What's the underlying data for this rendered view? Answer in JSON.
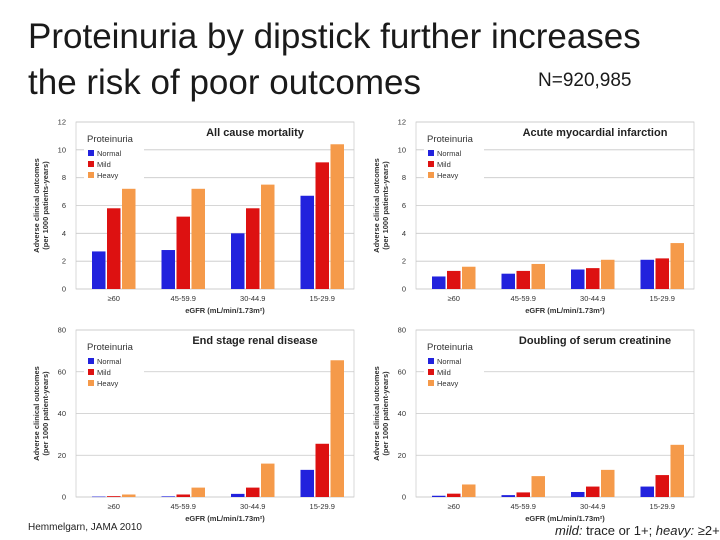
{
  "slide": {
    "title_line1": "Proteinuria by dipstick further increases",
    "title_line2": "the risk of poor outcomes",
    "n_label": "N=920,985",
    "citation": "Hemmelgarn, JAMA 2010",
    "footnote_mild_label": "mild:",
    "footnote_mild_value": " trace or 1+; ",
    "footnote_heavy_label": "heavy:",
    "footnote_heavy_value": " ≥2+"
  },
  "colors": {
    "Normal": "#2222dd",
    "Mild": "#dd1111",
    "Heavy": "#f59a4a"
  },
  "chart_data": [
    {
      "type": "bar",
      "title": "All cause mortality",
      "xlabel": "eGFR (mL/min/1.73m²)",
      "ylabel_line1": "Adverse clinical outcomes",
      "ylabel_line2": "(per 1000 patients-years)",
      "ylim": [
        0,
        12
      ],
      "yticks": [
        0,
        2,
        4,
        6,
        8,
        10,
        12
      ],
      "categories": [
        "≥60",
        "45-59.9",
        "30-44.9",
        "15-29.9"
      ],
      "legend_title": "Proteinuria",
      "series": [
        {
          "name": "Normal",
          "values": [
            2.7,
            2.8,
            4.0,
            6.7
          ]
        },
        {
          "name": "Mild",
          "values": [
            5.8,
            5.2,
            5.8,
            9.1
          ]
        },
        {
          "name": "Heavy",
          "values": [
            7.2,
            7.2,
            7.5,
            10.4
          ]
        }
      ]
    },
    {
      "type": "bar",
      "title": "Acute myocardial infarction",
      "xlabel": "eGFR (mL/min/1.73m²)",
      "ylabel_line1": "Adverse clinical outcomes",
      "ylabel_line2": "(per 1000 patients-years)",
      "ylim": [
        0,
        12
      ],
      "yticks": [
        0,
        2,
        4,
        6,
        8,
        10,
        12
      ],
      "categories": [
        "≥60",
        "45-59.9",
        "30-44.9",
        "15-29.9"
      ],
      "legend_title": "Proteinuria",
      "series": [
        {
          "name": "Normal",
          "values": [
            0.9,
            1.1,
            1.4,
            2.1
          ]
        },
        {
          "name": "Mild",
          "values": [
            1.3,
            1.3,
            1.5,
            2.2
          ]
        },
        {
          "name": "Heavy",
          "values": [
            1.6,
            1.8,
            2.1,
            3.3
          ]
        }
      ]
    },
    {
      "type": "bar",
      "title": "End stage renal disease",
      "xlabel": "eGFR (mL/min/1.73m²)",
      "ylabel_line1": "Adverse clinical outcomes",
      "ylabel_line2": "(per 1000 patient-years)",
      "ylim": [
        0,
        80
      ],
      "yticks": [
        0,
        20,
        40,
        60,
        80
      ],
      "categories": [
        "≥60",
        "45-59.9",
        "30-44.9",
        "15-29.9"
      ],
      "legend_title": "Proteinuria",
      "series": [
        {
          "name": "Normal",
          "values": [
            0.2,
            0.3,
            1.5,
            13
          ]
        },
        {
          "name": "Mild",
          "values": [
            0.4,
            1.2,
            4.5,
            25.5
          ]
        },
        {
          "name": "Heavy",
          "values": [
            1.2,
            4.5,
            16,
            65.5
          ]
        }
      ]
    },
    {
      "type": "bar",
      "title": "Doubling of serum creatinine",
      "xlabel": "eGFR (mL/min/1.73m²)",
      "ylabel_line1": "Adverse clinical outcomes",
      "ylabel_line2": "(per 1000 patient-years)",
      "ylim": [
        0,
        80
      ],
      "yticks": [
        0,
        20,
        40,
        60,
        80
      ],
      "categories": [
        "≥60",
        "45-59.9",
        "30-44.9",
        "15-29.9"
      ],
      "legend_title": "Proteinuria",
      "series": [
        {
          "name": "Normal",
          "values": [
            0.6,
            0.9,
            2.4,
            5
          ]
        },
        {
          "name": "Mild",
          "values": [
            1.6,
            2.2,
            5,
            10.5
          ]
        },
        {
          "name": "Heavy",
          "values": [
            6,
            10,
            13,
            25
          ]
        }
      ]
    }
  ]
}
